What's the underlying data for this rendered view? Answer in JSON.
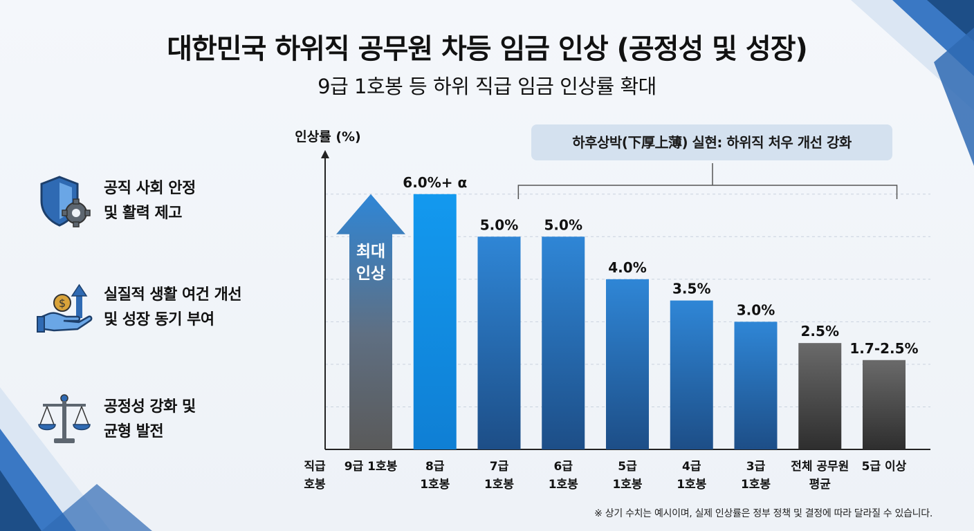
{
  "title": "대한민국 하위직 공무원 차등 임금 인상 (공정성 및 성장)",
  "subtitle": "9급 1호봉 등 하위 직급 임금 인상률 확대",
  "benefits": [
    {
      "icon": "shield-gear-icon",
      "text": "공직 사회 안정\n및 활력 제고"
    },
    {
      "icon": "hand-coin-up-arrow-icon",
      "text": "실질적 생활 여건 개선\n및 성장 동기 부여"
    },
    {
      "icon": "balance-scale-icon",
      "text": "공정성 강화 및\n균형 발전"
    }
  ],
  "callout": "하후상박(下厚上薄) 실현: 하위직 처우 개선 강화",
  "arrow_label": [
    "최대",
    "인상"
  ],
  "footnote": "※ 상기 수치는 예시이며, 실제 인상률은 정부 정책 및 결정에 따라 달라질 수 있습니다.",
  "colors": {
    "bright_blue": "#1393e8",
    "blue": "#2a78c8",
    "dark_blue": "#1d4e87",
    "gray": "#5a5a5a",
    "arrow_blue": "#2f86d6"
  },
  "chart_data": {
    "type": "bar",
    "ylabel": "인상률 (%)",
    "xlabel": [
      "직급",
      "호봉"
    ],
    "categories": [
      [
        "9급 1호봉"
      ],
      [
        "8급",
        "1호봉"
      ],
      [
        "7급",
        "1호봉"
      ],
      [
        "6급",
        "1호봉"
      ],
      [
        "5급",
        "1호봉"
      ],
      [
        "4급",
        "1호봉"
      ],
      [
        "3급",
        "1호봉"
      ],
      [
        "전체 공무원",
        "평균"
      ],
      [
        "5급 이상"
      ]
    ],
    "values": [
      6.0,
      6.0,
      5.0,
      5.0,
      4.0,
      3.5,
      3.0,
      2.5,
      2.1
    ],
    "data_labels": [
      "",
      "6.0%+ α",
      "5.0%",
      "5.0%",
      "4.0%",
      "3.5%",
      "3.0%",
      "2.5%",
      "1.7-2.5%"
    ],
    "bar_styles": [
      "arrow",
      "bright",
      "blue",
      "blue",
      "blue",
      "blue",
      "blue",
      "gray",
      "gray"
    ],
    "ylim": [
      0,
      6.5
    ],
    "grid": true
  }
}
